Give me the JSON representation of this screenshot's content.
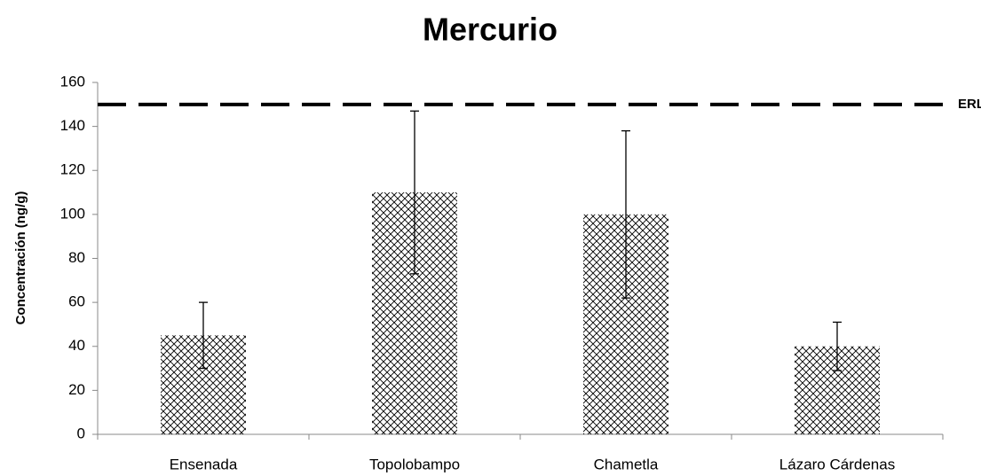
{
  "chart_data": {
    "type": "bar",
    "title": "Mercurio",
    "y_label": "Concentración  (ng/g)",
    "categories": [
      "Ensenada",
      "Topolobampo",
      "Chametla",
      "Lázaro Cárdenas"
    ],
    "values": [
      45,
      110,
      100,
      40
    ],
    "errors": [
      15,
      37,
      38,
      11
    ],
    "color": "#000000",
    "pattern": "crosshatch",
    "reference_line": {
      "value": 150,
      "label": "ERL"
    },
    "ylim": [
      0,
      160
    ],
    "yticks": [
      0,
      20,
      40,
      60,
      80,
      100,
      120,
      140,
      160
    ],
    "grid": false
  }
}
